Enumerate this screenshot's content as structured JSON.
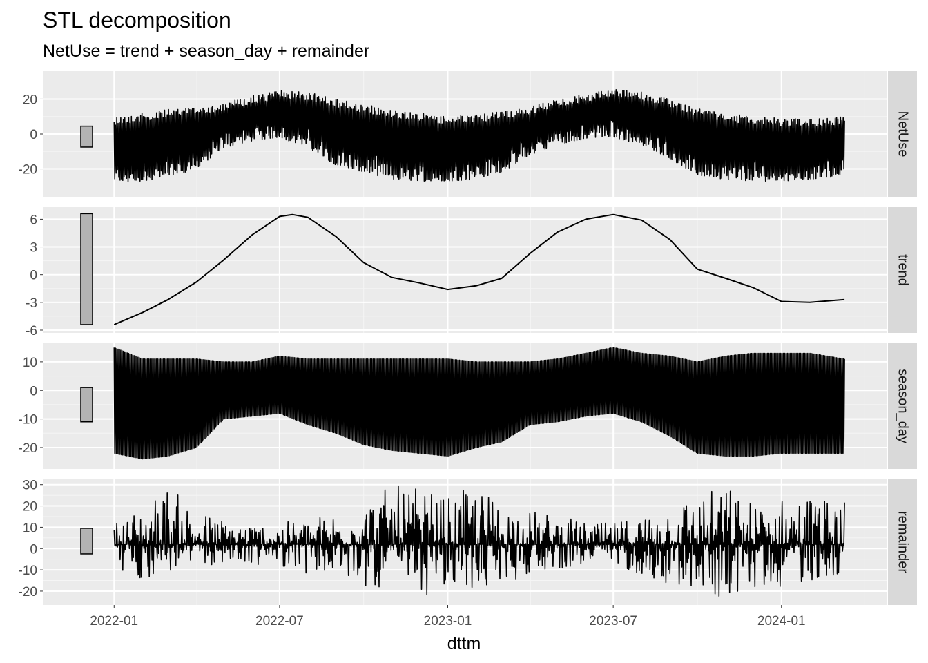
{
  "chart_data": {
    "type": "line",
    "title": "STL decomposition",
    "subtitle": "NetUse = trend + season_day + remainder",
    "xlabel": "dttm",
    "x_ticks": [
      "2022-01",
      "2022-07",
      "2023-01",
      "2023-07",
      "2024-01"
    ],
    "xlim": [
      "2021-10-15",
      "2024-04-25"
    ],
    "x_range": [
      "2022-01-01",
      "2024-03-10"
    ],
    "grid": true,
    "facets": [
      {
        "name": "NetUse",
        "ylim": [
          -36,
          36
        ],
        "yticks": [
          -20,
          0,
          20
        ],
        "scale_bar": [
          -7.5,
          4.5
        ],
        "envelope_upper": [
          [
            "2022-01-01",
            10
          ],
          [
            "2022-02-01",
            12
          ],
          [
            "2022-03-01",
            14
          ],
          [
            "2022-04-01",
            16
          ],
          [
            "2022-05-01",
            18
          ],
          [
            "2022-06-01",
            22
          ],
          [
            "2022-07-01",
            25
          ],
          [
            "2022-08-01",
            24
          ],
          [
            "2022-09-01",
            20
          ],
          [
            "2022-10-01",
            17
          ],
          [
            "2022-11-01",
            14
          ],
          [
            "2022-12-01",
            12
          ],
          [
            "2023-01-01",
            10
          ],
          [
            "2023-02-01",
            11
          ],
          [
            "2023-03-01",
            13
          ],
          [
            "2023-04-01",
            16
          ],
          [
            "2023-05-01",
            20
          ],
          [
            "2023-06-01",
            23
          ],
          [
            "2023-07-01",
            26
          ],
          [
            "2023-08-01",
            24
          ],
          [
            "2023-09-01",
            20
          ],
          [
            "2023-10-01",
            15
          ],
          [
            "2023-11-01",
            12
          ],
          [
            "2023-12-01",
            10
          ],
          [
            "2024-01-01",
            9
          ],
          [
            "2024-02-01",
            9
          ],
          [
            "2024-03-10",
            10
          ]
        ],
        "envelope_lower": [
          [
            "2022-01-01",
            -28
          ],
          [
            "2022-02-01",
            -27
          ],
          [
            "2022-03-01",
            -25
          ],
          [
            "2022-04-01",
            -20
          ],
          [
            "2022-05-01",
            -8
          ],
          [
            "2022-06-01",
            -4
          ],
          [
            "2022-07-01",
            -2
          ],
          [
            "2022-08-01",
            -8
          ],
          [
            "2022-09-01",
            -18
          ],
          [
            "2022-10-01",
            -22
          ],
          [
            "2022-11-01",
            -26
          ],
          [
            "2022-12-01",
            -27
          ],
          [
            "2023-01-01",
            -27
          ],
          [
            "2023-02-01",
            -26
          ],
          [
            "2023-03-01",
            -22
          ],
          [
            "2023-04-01",
            -12
          ],
          [
            "2023-05-01",
            -6
          ],
          [
            "2023-06-01",
            -3
          ],
          [
            "2023-07-01",
            -2
          ],
          [
            "2023-08-01",
            -6
          ],
          [
            "2023-09-01",
            -14
          ],
          [
            "2023-10-01",
            -24
          ],
          [
            "2023-11-01",
            -26
          ],
          [
            "2023-12-01",
            -27
          ],
          [
            "2024-01-01",
            -27
          ],
          [
            "2024-02-01",
            -26
          ],
          [
            "2024-03-10",
            -24
          ]
        ]
      },
      {
        "name": "trend",
        "ylim": [
          -6.3,
          7.3
        ],
        "yticks": [
          -6,
          -3,
          0,
          3,
          6
        ],
        "scale_bar": [
          -5.4,
          6.6
        ],
        "series": [
          [
            "2022-01-01",
            -5.4
          ],
          [
            "2022-02-01",
            -4.1
          ],
          [
            "2022-03-01",
            -2.7
          ],
          [
            "2022-04-01",
            -0.8
          ],
          [
            "2022-05-01",
            1.6
          ],
          [
            "2022-06-01",
            4.3
          ],
          [
            "2022-07-01",
            6.3
          ],
          [
            "2022-07-15",
            6.5
          ],
          [
            "2022-08-01",
            6.2
          ],
          [
            "2022-09-01",
            4.1
          ],
          [
            "2022-10-01",
            1.3
          ],
          [
            "2022-11-01",
            -0.3
          ],
          [
            "2022-12-01",
            -0.9
          ],
          [
            "2023-01-01",
            -1.6
          ],
          [
            "2023-02-01",
            -1.2
          ],
          [
            "2023-03-01",
            -0.4
          ],
          [
            "2023-04-01",
            2.3
          ],
          [
            "2023-05-01",
            4.6
          ],
          [
            "2023-06-01",
            6.0
          ],
          [
            "2023-07-01",
            6.5
          ],
          [
            "2023-08-01",
            5.9
          ],
          [
            "2023-09-01",
            3.8
          ],
          [
            "2023-10-01",
            0.6
          ],
          [
            "2023-11-01",
            -0.4
          ],
          [
            "2023-12-01",
            -1.4
          ],
          [
            "2024-01-01",
            -2.9
          ],
          [
            "2024-02-01",
            -3.0
          ],
          [
            "2024-03-10",
            -2.7
          ]
        ]
      },
      {
        "name": "season_day",
        "ylim": [
          -27.5,
          16.5
        ],
        "yticks": [
          -20,
          -10,
          0,
          10
        ],
        "scale_bar": [
          -11,
          1
        ],
        "envelope_upper": [
          [
            "2022-01-01",
            15
          ],
          [
            "2022-02-01",
            11
          ],
          [
            "2022-03-01",
            11
          ],
          [
            "2022-04-01",
            11
          ],
          [
            "2022-05-01",
            10
          ],
          [
            "2022-06-01",
            10
          ],
          [
            "2022-07-01",
            12
          ],
          [
            "2022-08-01",
            11
          ],
          [
            "2022-09-01",
            11
          ],
          [
            "2022-10-01",
            11
          ],
          [
            "2022-11-01",
            11
          ],
          [
            "2022-12-01",
            11
          ],
          [
            "2023-01-01",
            11
          ],
          [
            "2023-02-01",
            10
          ],
          [
            "2023-03-01",
            10
          ],
          [
            "2023-04-01",
            10
          ],
          [
            "2023-05-01",
            11
          ],
          [
            "2023-06-01",
            13
          ],
          [
            "2023-07-01",
            15
          ],
          [
            "2023-08-01",
            13
          ],
          [
            "2023-09-01",
            12
          ],
          [
            "2023-10-01",
            10
          ],
          [
            "2023-11-01",
            12
          ],
          [
            "2023-12-01",
            13
          ],
          [
            "2024-01-01",
            13
          ],
          [
            "2024-02-01",
            13
          ],
          [
            "2024-03-10",
            11
          ]
        ],
        "envelope_lower": [
          [
            "2022-01-01",
            -22
          ],
          [
            "2022-02-01",
            -24
          ],
          [
            "2022-03-01",
            -23
          ],
          [
            "2022-04-01",
            -20
          ],
          [
            "2022-05-01",
            -10
          ],
          [
            "2022-06-01",
            -9
          ],
          [
            "2022-07-01",
            -8
          ],
          [
            "2022-08-01",
            -12
          ],
          [
            "2022-09-01",
            -15
          ],
          [
            "2022-10-01",
            -19
          ],
          [
            "2022-11-01",
            -21
          ],
          [
            "2022-12-01",
            -22
          ],
          [
            "2023-01-01",
            -23
          ],
          [
            "2023-02-01",
            -20
          ],
          [
            "2023-03-01",
            -18
          ],
          [
            "2023-04-01",
            -12
          ],
          [
            "2023-05-01",
            -11
          ],
          [
            "2023-06-01",
            -9
          ],
          [
            "2023-07-01",
            -8
          ],
          [
            "2023-08-01",
            -11
          ],
          [
            "2023-09-01",
            -16
          ],
          [
            "2023-10-01",
            -22
          ],
          [
            "2023-11-01",
            -23
          ],
          [
            "2023-12-01",
            -23
          ],
          [
            "2024-01-01",
            -22
          ],
          [
            "2024-02-01",
            -22
          ],
          [
            "2024-03-10",
            -22
          ]
        ]
      },
      {
        "name": "remainder",
        "ylim": [
          -26.5,
          32.5
        ],
        "yticks": [
          -20,
          -10,
          0,
          10,
          20,
          30
        ],
        "scale_bar": [
          -2.5,
          9.5
        ],
        "envelope_upper": [
          [
            "2022-01-01",
            12
          ],
          [
            "2022-02-01",
            20
          ],
          [
            "2022-03-01",
            30
          ],
          [
            "2022-04-01",
            18
          ],
          [
            "2022-05-01",
            14
          ],
          [
            "2022-06-01",
            12
          ],
          [
            "2022-07-01",
            12
          ],
          [
            "2022-08-01",
            14
          ],
          [
            "2022-09-01",
            18
          ],
          [
            "2022-10-01",
            22
          ],
          [
            "2022-11-01",
            30
          ],
          [
            "2022-12-01",
            28
          ],
          [
            "2023-01-01",
            24
          ],
          [
            "2023-02-01",
            30
          ],
          [
            "2023-03-01",
            22
          ],
          [
            "2023-04-01",
            18
          ],
          [
            "2023-05-01",
            16
          ],
          [
            "2023-06-01",
            12
          ],
          [
            "2023-07-01",
            12
          ],
          [
            "2023-08-01",
            16
          ],
          [
            "2023-09-01",
            22
          ],
          [
            "2023-10-01",
            26
          ],
          [
            "2023-11-01",
            30
          ],
          [
            "2023-12-01",
            22
          ],
          [
            "2024-01-01",
            24
          ],
          [
            "2024-02-01",
            26
          ],
          [
            "2024-03-10",
            22
          ]
        ],
        "envelope_lower": [
          [
            "2022-01-01",
            -12
          ],
          [
            "2022-02-01",
            -15
          ],
          [
            "2022-03-01",
            -12
          ],
          [
            "2022-04-01",
            -8
          ],
          [
            "2022-05-01",
            -8
          ],
          [
            "2022-06-01",
            -8
          ],
          [
            "2022-07-01",
            -8
          ],
          [
            "2022-08-01",
            -12
          ],
          [
            "2022-09-01",
            -15
          ],
          [
            "2022-10-01",
            -18
          ],
          [
            "2022-11-01",
            -20
          ],
          [
            "2022-12-01",
            -22
          ],
          [
            "2023-01-01",
            -24
          ],
          [
            "2023-02-01",
            -20
          ],
          [
            "2023-03-01",
            -18
          ],
          [
            "2023-04-01",
            -12
          ],
          [
            "2023-05-01",
            -10
          ],
          [
            "2023-06-01",
            -8
          ],
          [
            "2023-07-01",
            -8
          ],
          [
            "2023-08-01",
            -12
          ],
          [
            "2023-09-01",
            -18
          ],
          [
            "2023-10-01",
            -22
          ],
          [
            "2023-11-01",
            -24
          ],
          [
            "2023-12-01",
            -20
          ],
          [
            "2024-01-01",
            -18
          ],
          [
            "2024-02-01",
            -16
          ],
          [
            "2024-03-10",
            -12
          ]
        ]
      }
    ]
  }
}
